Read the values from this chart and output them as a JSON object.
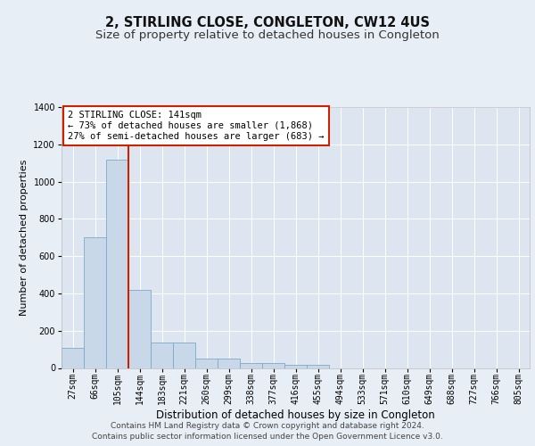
{
  "title": "2, STIRLING CLOSE, CONGLETON, CW12 4US",
  "subtitle": "Size of property relative to detached houses in Congleton",
  "xlabel": "Distribution of detached houses by size in Congleton",
  "ylabel": "Number of detached properties",
  "bar_values": [
    110,
    700,
    1120,
    420,
    135,
    135,
    50,
    50,
    28,
    28,
    15,
    15,
    0,
    0,
    0,
    0,
    0,
    0,
    0,
    0,
    0
  ],
  "categories": [
    "27sqm",
    "66sqm",
    "105sqm",
    "144sqm",
    "183sqm",
    "221sqm",
    "260sqm",
    "299sqm",
    "338sqm",
    "377sqm",
    "416sqm",
    "455sqm",
    "494sqm",
    "533sqm",
    "571sqm",
    "610sqm",
    "649sqm",
    "688sqm",
    "727sqm",
    "766sqm",
    "805sqm"
  ],
  "bar_color": "#c8d8e8",
  "bar_edge_color": "#7aaac8",
  "background_color": "#e8eef5",
  "plot_bg_color": "#dce5f0",
  "grid_color": "#ffffff",
  "vline_x": 2.5,
  "vline_color": "#cc2200",
  "annotation_text": "2 STIRLING CLOSE: 141sqm\n← 73% of detached houses are smaller (1,868)\n27% of semi-detached houses are larger (683) →",
  "annotation_box_color": "#ffffff",
  "annotation_box_edge_color": "#cc2200",
  "ylim": [
    0,
    1400
  ],
  "yticks": [
    0,
    200,
    400,
    600,
    800,
    1000,
    1200,
    1400
  ],
  "footer_text": "Contains HM Land Registry data © Crown copyright and database right 2024.\nContains public sector information licensed under the Open Government Licence v3.0.",
  "title_fontsize": 10.5,
  "subtitle_fontsize": 9.5,
  "xlabel_fontsize": 8.5,
  "ylabel_fontsize": 8,
  "tick_fontsize": 7,
  "annotation_fontsize": 7.5,
  "footer_fontsize": 6.5
}
